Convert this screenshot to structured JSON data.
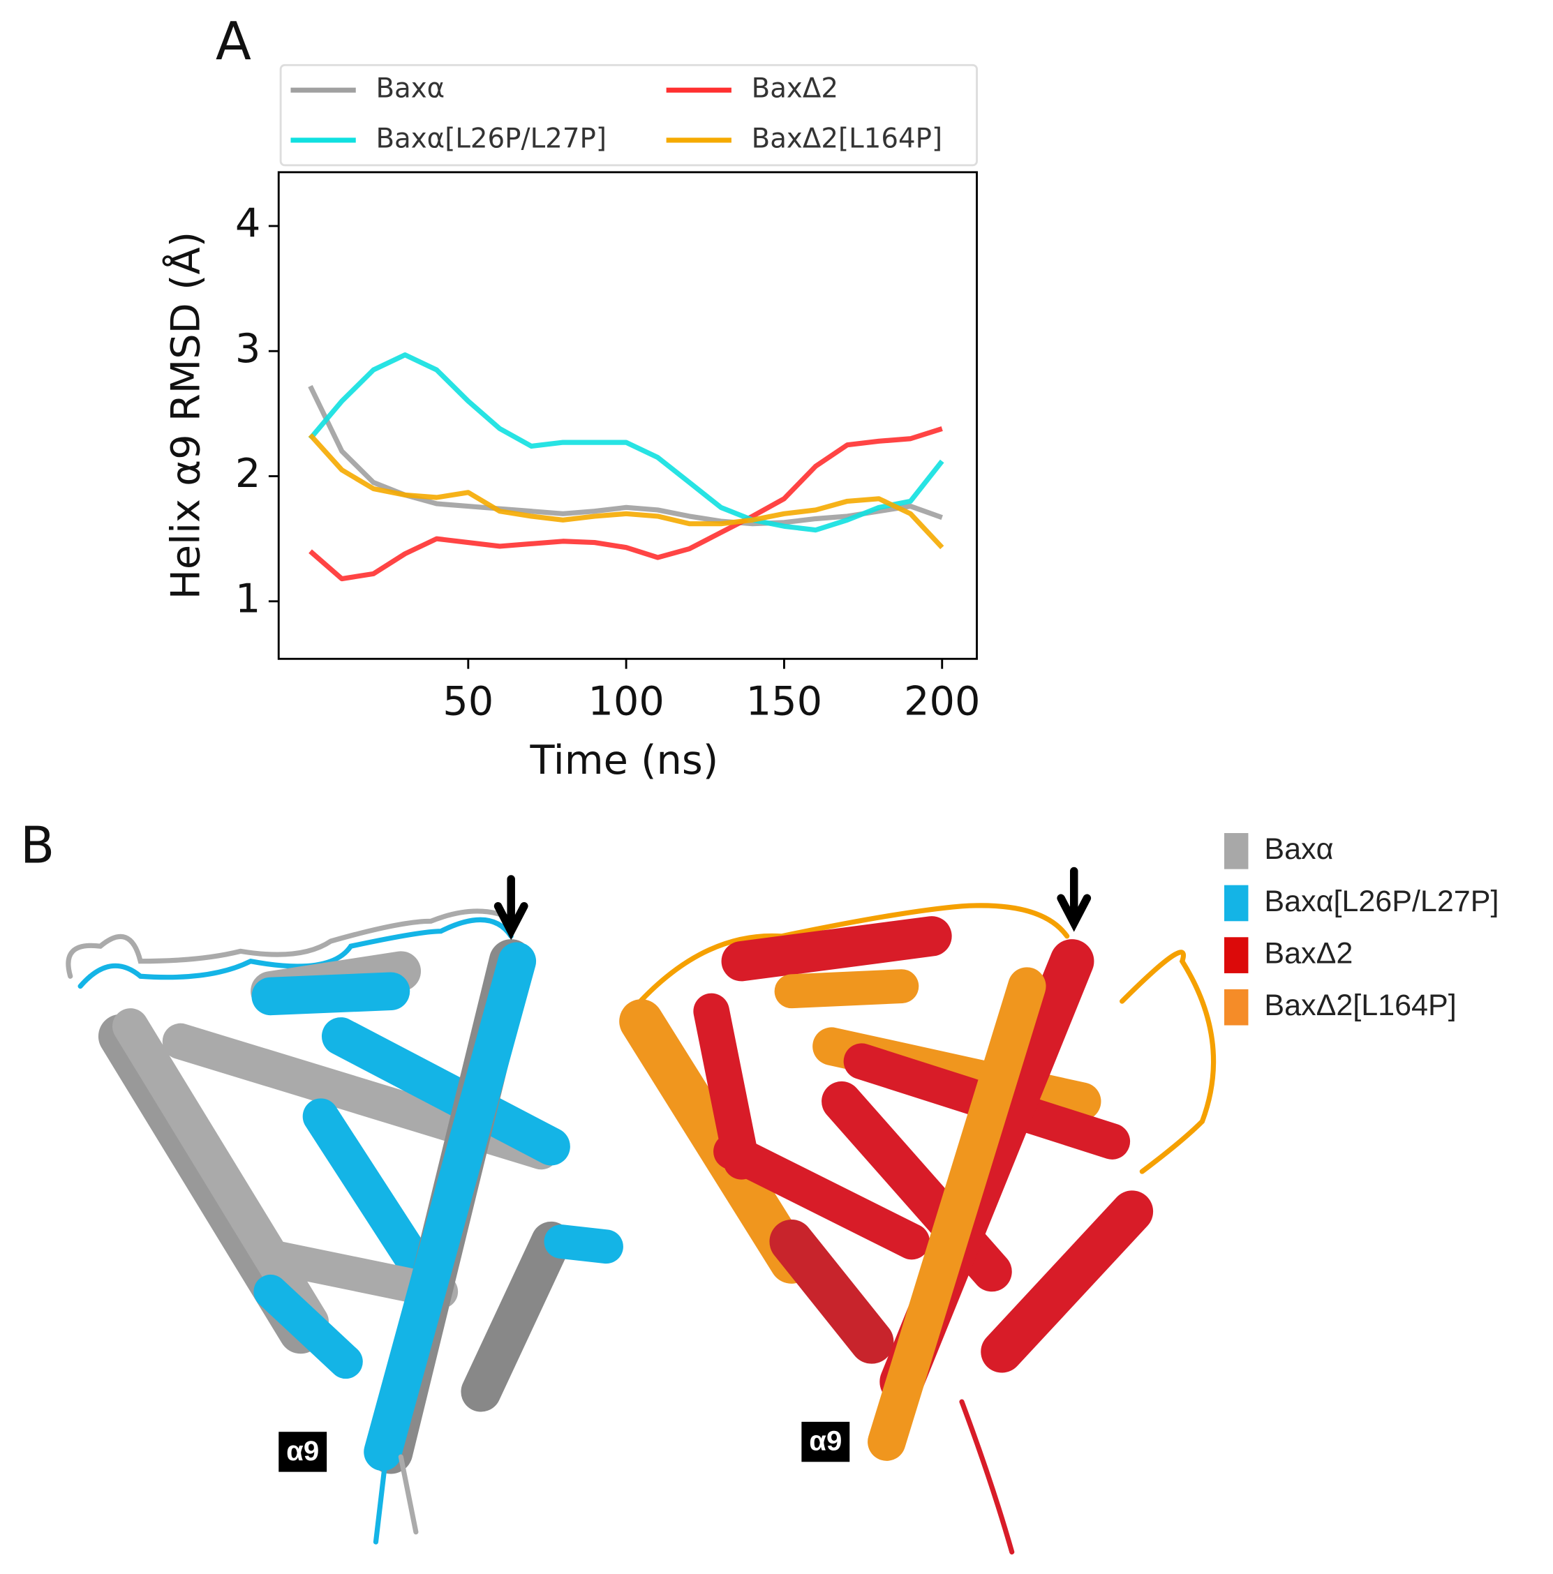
{
  "chart_data": {
    "type": "line",
    "panel_label": "A",
    "x_label": "Time (ns)",
    "y_label": "Helix α9 RMSD (Å)",
    "x": [
      0,
      10,
      20,
      30,
      40,
      50,
      60,
      70,
      80,
      90,
      100,
      110,
      120,
      130,
      140,
      150,
      160,
      170,
      180,
      190,
      200
    ],
    "series": [
      {
        "name": "Baxα",
        "color": "#a0a0a0",
        "values": [
          2.72,
          2.2,
          1.95,
          1.85,
          1.78,
          1.76,
          1.74,
          1.72,
          1.7,
          1.72,
          1.75,
          1.73,
          1.68,
          1.64,
          1.62,
          1.63,
          1.66,
          1.68,
          1.72,
          1.76,
          1.67
        ]
      },
      {
        "name": "BaxΔ2",
        "color": "#ff3030",
        "values": [
          1.4,
          1.18,
          1.22,
          1.38,
          1.5,
          1.47,
          1.44,
          1.46,
          1.48,
          1.47,
          1.43,
          1.35,
          1.42,
          1.55,
          1.68,
          1.82,
          2.08,
          2.25,
          2.28,
          2.3,
          2.38
        ]
      },
      {
        "name": "Baxα[L26P/L27P]",
        "color": "#10e0e0",
        "values": [
          2.3,
          2.6,
          2.85,
          2.97,
          2.85,
          2.6,
          2.38,
          2.24,
          2.27,
          2.27,
          2.27,
          2.15,
          1.95,
          1.75,
          1.65,
          1.6,
          1.57,
          1.65,
          1.75,
          1.8,
          2.12
        ]
      },
      {
        "name": "BaxΔ2[L164P]",
        "color": "#f5aa00",
        "values": [
          2.33,
          2.05,
          1.9,
          1.85,
          1.83,
          1.87,
          1.72,
          1.68,
          1.65,
          1.68,
          1.7,
          1.68,
          1.62,
          1.62,
          1.65,
          1.7,
          1.73,
          1.8,
          1.82,
          1.7,
          1.43
        ]
      }
    ],
    "xlim": [
      -10,
      211
    ],
    "ylim": [
      0.54,
      4.43
    ],
    "xticks": [
      50,
      100,
      150,
      200
    ],
    "yticks": [
      1,
      2,
      3,
      4
    ]
  },
  "panel_b": {
    "label": "B",
    "legend": [
      {
        "name": "Baxα",
        "color": "#a8a8a8"
      },
      {
        "name": "Baxα[L26P/L27P]",
        "color": "#14b4e6"
      },
      {
        "name": "BaxΔ2",
        "color": "#dc0a0a"
      },
      {
        "name": "BaxΔ2[L164P]",
        "color": "#f58c28"
      }
    ],
    "helix_labels": [
      "α9",
      "α9"
    ]
  }
}
